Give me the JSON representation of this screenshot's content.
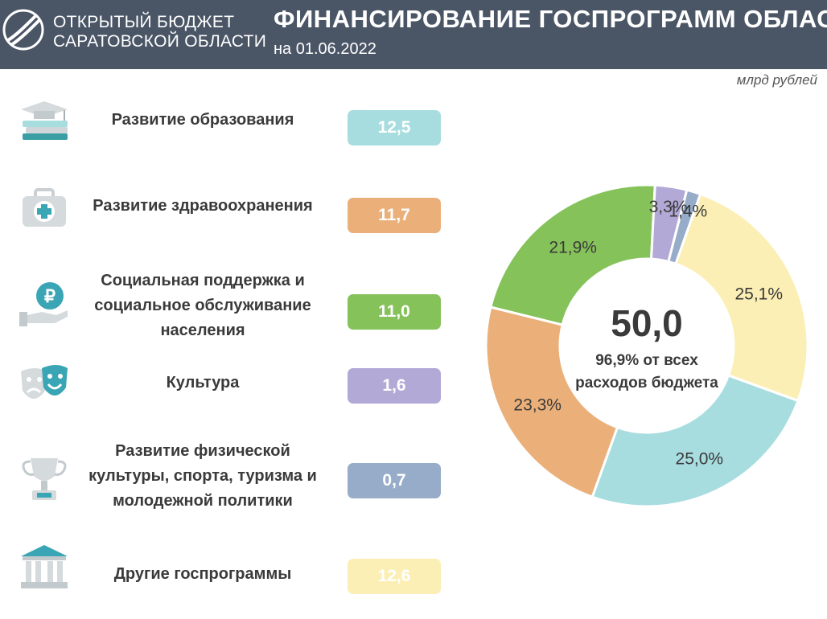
{
  "header": {
    "org_name_line1": "ОТКРЫТЫЙ БЮДЖЕТ",
    "org_name_line2": "САРАТОВСКОЙ ОБЛАСТИ",
    "title": "ФИНАНСИРОВАНИЕ ГОСПРОГРАММ ОБЛАСТИ",
    "date": "на 01.06.2022"
  },
  "unit_label": "млрд рублей",
  "programs": [
    {
      "label": "Развитие образования",
      "value": "12,5",
      "color": "#a8dde0",
      "icon": "education-icon"
    },
    {
      "label": "Развитие здравоохранения",
      "value": "11,7",
      "color": "#ebb07a",
      "icon": "first-aid-kit-icon"
    },
    {
      "label": "Социальная поддержка и социальное обслуживание населения",
      "value": "11,0",
      "color": "#86c25a",
      "icon": "ruble-hand-icon"
    },
    {
      "label": "Культура",
      "value": "1,6",
      "color": "#b2a9d6",
      "icon": "theater-masks-icon"
    },
    {
      "label": "Развитие физической культуры, спорта, туризма и молодежной политики",
      "value": "0,7",
      "color": "#96acc8",
      "icon": "trophy-icon"
    },
    {
      "label": "Другие госпрограммы",
      "value": "12,6",
      "color": "#fbefb5",
      "icon": "government-building-icon"
    }
  ],
  "chart_data": {
    "type": "pie",
    "variant": "donut",
    "categories": [
      "Развитие образования",
      "Развитие здравоохранения",
      "Социальная поддержка и социальное обслуживание населения",
      "Культура",
      "Развитие физической культуры, спорта, туризма и молодежной политики",
      "Другие госпрограммы"
    ],
    "values": [
      12.5,
      11.7,
      11.0,
      1.6,
      0.7,
      12.6
    ],
    "percent_labels": [
      "25,0%",
      "23,3%",
      "21,9%",
      "3,3%",
      "1,4%",
      "25,1%"
    ],
    "colors": [
      "#a8dde0",
      "#ebb07a",
      "#86c25a",
      "#b2a9d6",
      "#96acc8",
      "#fbefb5"
    ],
    "center_total": "50,0",
    "center_caption_line1": "96,9% от всех",
    "center_caption_line2": "расходов бюджета"
  }
}
